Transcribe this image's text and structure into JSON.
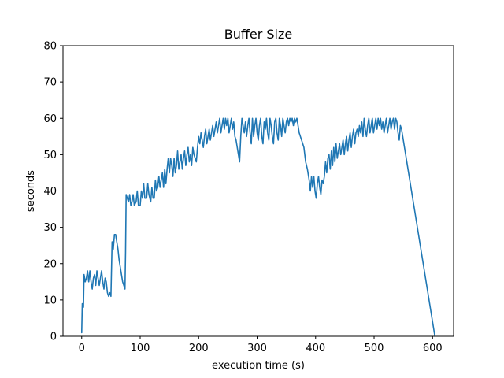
{
  "chart_data": {
    "type": "line",
    "title": "Buffer Size",
    "xlabel": "execution time (s)",
    "ylabel": "seconds",
    "xlim": [
      -32,
      636
    ],
    "ylim": [
      0,
      80
    ],
    "xticks": [
      0,
      100,
      200,
      300,
      400,
      500,
      600
    ],
    "yticks": [
      0,
      10,
      20,
      30,
      40,
      50,
      60,
      70,
      80
    ],
    "grid": false,
    "legend": "none",
    "colors": {
      "line": "#1f77b4",
      "axes": "#000000",
      "background": "#ffffff"
    },
    "series": [
      {
        "points": [
          [
            0,
            1
          ],
          [
            1,
            9
          ],
          [
            3,
            8
          ],
          [
            4,
            17
          ],
          [
            6,
            15
          ],
          [
            8,
            16
          ],
          [
            10,
            18
          ],
          [
            12,
            15
          ],
          [
            14,
            18
          ],
          [
            16,
            15
          ],
          [
            18,
            13
          ],
          [
            20,
            16
          ],
          [
            22,
            17
          ],
          [
            24,
            14
          ],
          [
            26,
            18
          ],
          [
            28,
            16
          ],
          [
            30,
            14
          ],
          [
            32,
            16
          ],
          [
            34,
            18
          ],
          [
            36,
            15
          ],
          [
            38,
            13
          ],
          [
            40,
            16
          ],
          [
            42,
            15
          ],
          [
            44,
            12
          ],
          [
            46,
            11
          ],
          [
            48,
            12
          ],
          [
            50,
            11
          ],
          [
            52,
            26
          ],
          [
            54,
            24
          ],
          [
            56,
            28
          ],
          [
            58,
            28
          ],
          [
            60,
            26
          ],
          [
            62,
            24
          ],
          [
            64,
            21
          ],
          [
            66,
            19
          ],
          [
            68,
            17
          ],
          [
            70,
            15
          ],
          [
            72,
            14
          ],
          [
            74,
            13
          ],
          [
            75,
            23
          ],
          [
            76,
            39
          ],
          [
            78,
            38
          ],
          [
            80,
            37
          ],
          [
            82,
            39
          ],
          [
            84,
            36
          ],
          [
            86,
            37
          ],
          [
            88,
            39
          ],
          [
            90,
            36
          ],
          [
            93,
            37
          ],
          [
            95,
            40
          ],
          [
            97,
            36
          ],
          [
            100,
            36
          ],
          [
            102,
            40
          ],
          [
            104,
            38
          ],
          [
            106,
            42
          ],
          [
            108,
            38
          ],
          [
            111,
            38
          ],
          [
            113,
            42
          ],
          [
            115,
            39
          ],
          [
            118,
            37
          ],
          [
            120,
            41
          ],
          [
            122,
            38
          ],
          [
            124,
            38
          ],
          [
            126,
            43
          ],
          [
            128,
            40
          ],
          [
            130,
            41
          ],
          [
            132,
            44
          ],
          [
            134,
            41
          ],
          [
            136,
            43
          ],
          [
            138,
            45
          ],
          [
            140,
            41
          ],
          [
            142,
            46
          ],
          [
            144,
            42
          ],
          [
            146,
            46
          ],
          [
            148,
            49
          ],
          [
            150,
            45
          ],
          [
            152,
            49
          ],
          [
            154,
            47
          ],
          [
            156,
            44
          ],
          [
            158,
            49
          ],
          [
            160,
            45
          ],
          [
            162,
            47
          ],
          [
            164,
            51
          ],
          [
            166,
            46
          ],
          [
            168,
            48
          ],
          [
            170,
            50
          ],
          [
            172,
            46
          ],
          [
            174,
            49
          ],
          [
            176,
            51
          ],
          [
            178,
            47
          ],
          [
            180,
            50
          ],
          [
            182,
            52
          ],
          [
            184,
            48
          ],
          [
            186,
            50
          ],
          [
            188,
            47
          ],
          [
            190,
            52
          ],
          [
            192,
            50
          ],
          [
            194,
            49
          ],
          [
            196,
            48
          ],
          [
            198,
            52
          ],
          [
            200,
            55
          ],
          [
            202,
            53
          ],
          [
            204,
            56
          ],
          [
            206,
            54
          ],
          [
            208,
            52
          ],
          [
            210,
            55
          ],
          [
            212,
            57
          ],
          [
            214,
            53
          ],
          [
            216,
            55
          ],
          [
            218,
            57
          ],
          [
            220,
            54
          ],
          [
            222,
            56
          ],
          [
            224,
            58
          ],
          [
            226,
            55
          ],
          [
            228,
            57
          ],
          [
            230,
            59
          ],
          [
            232,
            56
          ],
          [
            234,
            58
          ],
          [
            236,
            60
          ],
          [
            238,
            56
          ],
          [
            240,
            58
          ],
          [
            242,
            60
          ],
          [
            244,
            57
          ],
          [
            246,
            60
          ],
          [
            248,
            58
          ],
          [
            250,
            60
          ],
          [
            252,
            56
          ],
          [
            254,
            58
          ],
          [
            256,
            60
          ],
          [
            258,
            57
          ],
          [
            260,
            59
          ],
          [
            262,
            55
          ],
          [
            264,
            54
          ],
          [
            266,
            52
          ],
          [
            268,
            50
          ],
          [
            270,
            48
          ],
          [
            272,
            55
          ],
          [
            274,
            60
          ],
          [
            276,
            58
          ],
          [
            278,
            56
          ],
          [
            280,
            59
          ],
          [
            282,
            55
          ],
          [
            284,
            58
          ],
          [
            286,
            60
          ],
          [
            288,
            56
          ],
          [
            290,
            53
          ],
          [
            292,
            60
          ],
          [
            294,
            55
          ],
          [
            296,
            58
          ],
          [
            298,
            60
          ],
          [
            300,
            56
          ],
          [
            302,
            54
          ],
          [
            304,
            58
          ],
          [
            306,
            60
          ],
          [
            308,
            55
          ],
          [
            310,
            53
          ],
          [
            312,
            59
          ],
          [
            314,
            57
          ],
          [
            316,
            60
          ],
          [
            318,
            56
          ],
          [
            320,
            54
          ],
          [
            322,
            60
          ],
          [
            324,
            58
          ],
          [
            326,
            55
          ],
          [
            328,
            53
          ],
          [
            330,
            59
          ],
          [
            332,
            60
          ],
          [
            334,
            56
          ],
          [
            336,
            54
          ],
          [
            338,
            60
          ],
          [
            340,
            58
          ],
          [
            342,
            55
          ],
          [
            344,
            60
          ],
          [
            346,
            58
          ],
          [
            348,
            56
          ],
          [
            350,
            59
          ],
          [
            352,
            60
          ],
          [
            354,
            58
          ],
          [
            356,
            60
          ],
          [
            358,
            59
          ],
          [
            360,
            60
          ],
          [
            362,
            58
          ],
          [
            364,
            60
          ],
          [
            366,
            59
          ],
          [
            368,
            60
          ],
          [
            370,
            58
          ],
          [
            372,
            56
          ],
          [
            374,
            55
          ],
          [
            376,
            54
          ],
          [
            378,
            53
          ],
          [
            380,
            52
          ],
          [
            383,
            48
          ],
          [
            386,
            46
          ],
          [
            389,
            43
          ],
          [
            391,
            40
          ],
          [
            393,
            44
          ],
          [
            395,
            41
          ],
          [
            397,
            44
          ],
          [
            399,
            40
          ],
          [
            401,
            38
          ],
          [
            403,
            42
          ],
          [
            405,
            44
          ],
          [
            407,
            41
          ],
          [
            409,
            39
          ],
          [
            411,
            43
          ],
          [
            413,
            42
          ],
          [
            415,
            44
          ],
          [
            417,
            48
          ],
          [
            419,
            45
          ],
          [
            421,
            49
          ],
          [
            423,
            50
          ],
          [
            425,
            46
          ],
          [
            427,
            51
          ],
          [
            429,
            47
          ],
          [
            431,
            52
          ],
          [
            433,
            48
          ],
          [
            435,
            53
          ],
          [
            437,
            49
          ],
          [
            439,
            51
          ],
          [
            441,
            53
          ],
          [
            443,
            50
          ],
          [
            445,
            52
          ],
          [
            447,
            54
          ],
          [
            449,
            50
          ],
          [
            451,
            53
          ],
          [
            453,
            55
          ],
          [
            455,
            51
          ],
          [
            457,
            54
          ],
          [
            459,
            56
          ],
          [
            461,
            52
          ],
          [
            463,
            55
          ],
          [
            465,
            57
          ],
          [
            467,
            53
          ],
          [
            469,
            56
          ],
          [
            471,
            57
          ],
          [
            473,
            55
          ],
          [
            475,
            58
          ],
          [
            477,
            56
          ],
          [
            479,
            59
          ],
          [
            481,
            55
          ],
          [
            483,
            60
          ],
          [
            485,
            57
          ],
          [
            487,
            55
          ],
          [
            489,
            58
          ],
          [
            491,
            60
          ],
          [
            493,
            56
          ],
          [
            495,
            58
          ],
          [
            497,
            60
          ],
          [
            499,
            56
          ],
          [
            501,
            58
          ],
          [
            503,
            60
          ],
          [
            505,
            57
          ],
          [
            507,
            60
          ],
          [
            509,
            58
          ],
          [
            511,
            60
          ],
          [
            513,
            57
          ],
          [
            515,
            59
          ],
          [
            517,
            56
          ],
          [
            519,
            58
          ],
          [
            521,
            60
          ],
          [
            523,
            56
          ],
          [
            525,
            58
          ],
          [
            527,
            60
          ],
          [
            529,
            57
          ],
          [
            531,
            59
          ],
          [
            533,
            60
          ],
          [
            535,
            57
          ],
          [
            537,
            60
          ],
          [
            539,
            59
          ],
          [
            541,
            56
          ],
          [
            543,
            54
          ],
          [
            545,
            58
          ],
          [
            547,
            57
          ],
          [
            604,
            0
          ]
        ]
      }
    ]
  }
}
